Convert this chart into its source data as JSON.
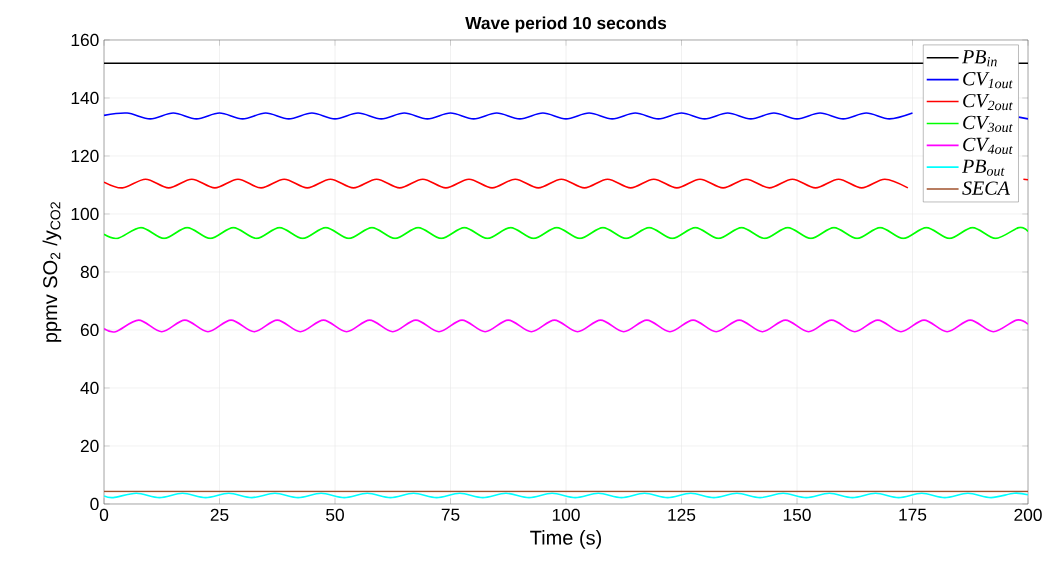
{
  "chart_data": {
    "type": "line",
    "title": "Wave period 10 seconds",
    "xlabel": "Time (s)",
    "ylabel": "ppmv SO$_{2}$ /y$_{CO2}$",
    "xlim": [
      0,
      200
    ],
    "ylim": [
      0,
      160
    ],
    "xticks": [
      0,
      25,
      50,
      75,
      100,
      125,
      150,
      175,
      200
    ],
    "yticks": [
      0,
      20,
      40,
      60,
      80,
      100,
      120,
      140,
      160
    ],
    "grid": true,
    "legend": "top right",
    "series": [
      {
        "name": "PB$_{in}$",
        "color": "#000000",
        "x": [
          0,
          200
        ],
        "values": [
          152,
          152
        ]
      },
      {
        "name": "CV$_{1out}$",
        "color": "#0000ff",
        "x": [
          0,
          5,
          10,
          15,
          20,
          25,
          30,
          35,
          40,
          45,
          50,
          55,
          60,
          65,
          70,
          75,
          80,
          85,
          90,
          95,
          100,
          105,
          110,
          115,
          120,
          125,
          130,
          135,
          140,
          145,
          150,
          155,
          160,
          165,
          170,
          175,
          180,
          185,
          190,
          198,
          200
        ],
        "values": [
          134,
          134.8,
          132.8,
          134.8,
          132.8,
          134.8,
          132.8,
          134.8,
          132.8,
          134.8,
          132.8,
          134.8,
          132.8,
          134.8,
          132.8,
          134.8,
          132.8,
          134.8,
          132.8,
          134.8,
          132.8,
          134.8,
          132.8,
          134.8,
          132.8,
          134.8,
          132.8,
          134.8,
          132.8,
          134.8,
          132.8,
          134.8,
          132.8,
          134.8,
          132.8,
          134.8,
          null,
          null,
          null,
          133.4,
          132.8
        ]
      },
      {
        "name": "CV$_{2out}$",
        "color": "#ff0000",
        "x": [
          0,
          4,
          9,
          14,
          19,
          24,
          29,
          34,
          39,
          44,
          49,
          54,
          59,
          64,
          69,
          74,
          79,
          84,
          89,
          94,
          99,
          104,
          109,
          114,
          119,
          124,
          129,
          134,
          139,
          144,
          149,
          154,
          159,
          164,
          169,
          174,
          179,
          184,
          189,
          194,
          199,
          200
        ],
        "values": [
          111,
          109,
          112,
          109,
          112,
          109,
          112,
          109,
          112,
          109,
          112,
          109,
          112,
          109,
          112,
          109,
          112,
          109,
          112,
          109,
          112,
          109,
          112,
          109,
          112,
          109,
          112,
          109,
          112,
          109,
          112,
          109,
          112,
          109,
          112,
          109,
          null,
          null,
          null,
          null,
          112,
          111.8
        ]
      },
      {
        "name": "CV$_{3out}$",
        "color": "#00ff00",
        "x": [
          0,
          3,
          8,
          13,
          18,
          23,
          28,
          33,
          38,
          43,
          48,
          53,
          58,
          63,
          68,
          73,
          78,
          83,
          88,
          93,
          98,
          103,
          108,
          113,
          118,
          123,
          128,
          133,
          138,
          143,
          148,
          153,
          158,
          163,
          168,
          173,
          178,
          183,
          188,
          193,
          198,
          200
        ],
        "values": [
          93,
          91.6,
          95.3,
          91.6,
          95.3,
          91.6,
          95.3,
          91.6,
          95.3,
          91.6,
          95.3,
          91.6,
          95.3,
          91.6,
          95.3,
          91.6,
          95.3,
          91.6,
          95.3,
          91.6,
          95.3,
          91.6,
          95.3,
          91.6,
          95.3,
          91.6,
          95.3,
          91.6,
          95.3,
          91.6,
          95.3,
          91.6,
          95.3,
          91.6,
          95.3,
          91.6,
          95.3,
          91.6,
          95.3,
          91.6,
          95.3,
          94
        ]
      },
      {
        "name": "CV$_{4out}$",
        "color": "#ff00ff",
        "x": [
          0,
          2.5,
          7.5,
          12.5,
          17.5,
          22.5,
          27.5,
          32.5,
          37.5,
          42.5,
          47.5,
          52.5,
          57.5,
          62.5,
          67.5,
          72.5,
          77.5,
          82.5,
          87.5,
          92.5,
          97.5,
          102.5,
          107.5,
          112.5,
          117.5,
          122.5,
          127.5,
          132.5,
          137.5,
          142.5,
          147.5,
          152.5,
          157.5,
          162.5,
          167.5,
          172.5,
          177.5,
          182.5,
          187.5,
          192.5,
          197.5,
          200
        ],
        "values": [
          60.5,
          59.4,
          63.4,
          59.4,
          63.4,
          59.4,
          63.4,
          59.4,
          63.4,
          59.4,
          63.4,
          59.4,
          63.4,
          59.4,
          63.4,
          59.4,
          63.4,
          59.4,
          63.4,
          59.4,
          63.4,
          59.4,
          63.4,
          59.4,
          63.4,
          59.4,
          63.4,
          59.4,
          63.4,
          59.4,
          63.4,
          59.4,
          63.4,
          59.4,
          63.4,
          59.4,
          63.4,
          59.4,
          63.4,
          59.4,
          63.4,
          62
        ]
      },
      {
        "name": "PB$_{out}$",
        "color": "#00ffff",
        "x": [
          0,
          2,
          7,
          12,
          17,
          22,
          27,
          32,
          37,
          42,
          47,
          52,
          57,
          62,
          67,
          72,
          77,
          82,
          87,
          92,
          97,
          102,
          107,
          112,
          117,
          122,
          127,
          132,
          137,
          142,
          147,
          152,
          157,
          162,
          167,
          172,
          177,
          182,
          187,
          192,
          197,
          200
        ],
        "values": [
          2.8,
          2.2,
          3.7,
          2.2,
          3.7,
          2.2,
          3.7,
          2.2,
          3.7,
          2.2,
          3.7,
          2.2,
          3.7,
          2.2,
          3.7,
          2.2,
          3.7,
          2.2,
          3.7,
          2.2,
          3.7,
          2.2,
          3.7,
          2.2,
          3.7,
          2.2,
          3.7,
          2.2,
          3.7,
          2.2,
          3.7,
          2.2,
          3.7,
          2.2,
          3.7,
          2.2,
          3.7,
          2.2,
          3.7,
          2.2,
          3.7,
          3.2
        ]
      },
      {
        "name": "SECA",
        "color": "#a0522d",
        "x": [
          0,
          200
        ],
        "values": [
          4.3,
          4.3
        ]
      }
    ]
  }
}
